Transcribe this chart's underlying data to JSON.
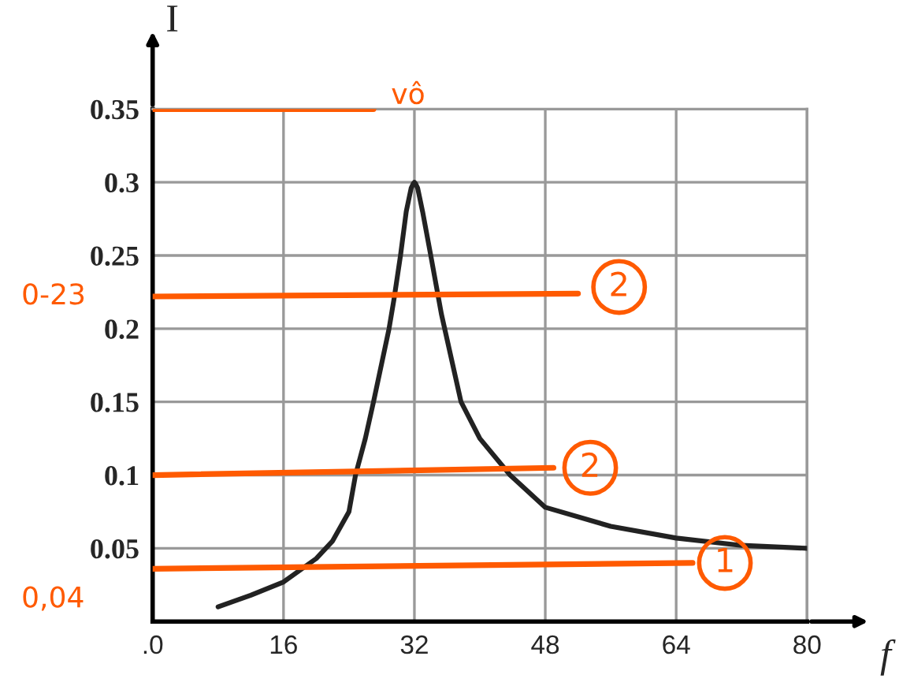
{
  "chart_data": {
    "type": "line",
    "xlabel": "f",
    "ylabel": "I",
    "xlim": [
      0,
      80
    ],
    "ylim": [
      0,
      0.35
    ],
    "xticks": [
      {
        "value": 0,
        "label": ".0"
      },
      16,
      32,
      48,
      64,
      80
    ],
    "yticks": [
      0.05,
      {
        "value": 0.1,
        "label": "0.1"
      },
      0.15,
      {
        "value": 0.2,
        "label": "0.2"
      },
      0.25,
      {
        "value": 0.3,
        "label": "0.3"
      },
      0.35
    ],
    "grid": true,
    "marker": "none",
    "line_style": "solid",
    "series": [
      {
        "color": "#222222",
        "x": [
          8,
          12,
          16,
          20,
          22,
          24,
          24.8,
          26,
          27,
          28.9,
          29.5,
          30.3,
          31,
          31.6,
          31.85,
          32,
          32.15,
          32.4,
          33,
          34,
          35.3,
          37.7,
          40,
          43.7,
          48,
          56,
          64,
          72,
          80
        ],
        "values": [
          0.01,
          0.018,
          0.027,
          0.043,
          0.055,
          0.075,
          0.1,
          0.125,
          0.15,
          0.2,
          0.22,
          0.25,
          0.28,
          0.296,
          0.299,
          0.3,
          0.299,
          0.296,
          0.28,
          0.25,
          0.21,
          0.15,
          0.125,
          0.1,
          0.078,
          0.065,
          0.057,
          0.052,
          0.05
        ]
      },
      {
        "color": "#ff5a00",
        "x": [
          0,
          27
        ],
        "values": [
          0.35,
          0.35
        ]
      },
      {
        "color": "#ff5a00",
        "x": [
          0,
          52
        ],
        "values": [
          0.222,
          0.224
        ]
      },
      {
        "color": "#ff5a00",
        "x": [
          0,
          49
        ],
        "values": [
          0.1,
          0.105
        ]
      },
      {
        "color": "#ff5a00",
        "x": [
          0,
          66
        ],
        "values": [
          0.036,
          0.04
        ]
      }
    ],
    "annotations": [
      "vô",
      "0-23",
      "2",
      "2",
      "0,04",
      "1"
    ]
  }
}
